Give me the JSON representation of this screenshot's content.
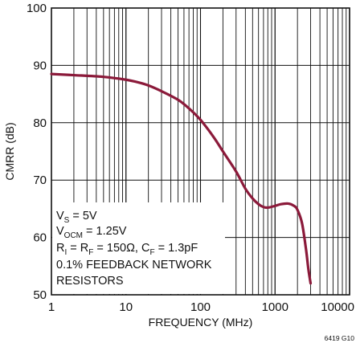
{
  "chart_data": {
    "type": "line",
    "title": "",
    "xlabel": "FREQUENCY (MHz)",
    "ylabel": "CMRR (dB)",
    "x_scale": "log",
    "xlim": [
      1,
      10000
    ],
    "ylim": [
      50,
      100
    ],
    "x_ticks": [
      "1",
      "10",
      "100",
      "1000",
      "10000"
    ],
    "y_ticks": [
      "50",
      "60",
      "70",
      "80",
      "90",
      "100"
    ],
    "grid": true,
    "series": [
      {
        "color": "#8b1a3a",
        "x": [
          1,
          2,
          5,
          10,
          15,
          20,
          30,
          50,
          70,
          100,
          150,
          200,
          300,
          400,
          500,
          600,
          700,
          800,
          1000,
          1200,
          1500,
          1800,
          2000,
          2300,
          2600,
          2800,
          3000
        ],
        "y": [
          88.5,
          88.3,
          88.0,
          87.5,
          87.0,
          86.5,
          85.5,
          84.0,
          82.5,
          80.5,
          77.5,
          75.0,
          71.5,
          68.5,
          66.8,
          65.8,
          65.3,
          65.2,
          65.5,
          65.8,
          65.9,
          65.5,
          64.8,
          62.5,
          58.0,
          54.5,
          52.0
        ]
      }
    ],
    "annotations": {
      "vs": {
        "main": "V",
        "sub": "S",
        "rest": " = 5V"
      },
      "vocm": {
        "main": "V",
        "sub": "OCM",
        "rest": " = 1.25V"
      },
      "r": {
        "p1": "R",
        "s1": "I",
        "p2": " = R",
        "s2": "F",
        "p3": " = 150Ω, C",
        "s3": "F",
        "p4": " = 1.3pF"
      },
      "note1": "0.1% FEEDBACK NETWORK",
      "note2": "RESISTORS"
    },
    "figure_id": "6419 G10"
  }
}
